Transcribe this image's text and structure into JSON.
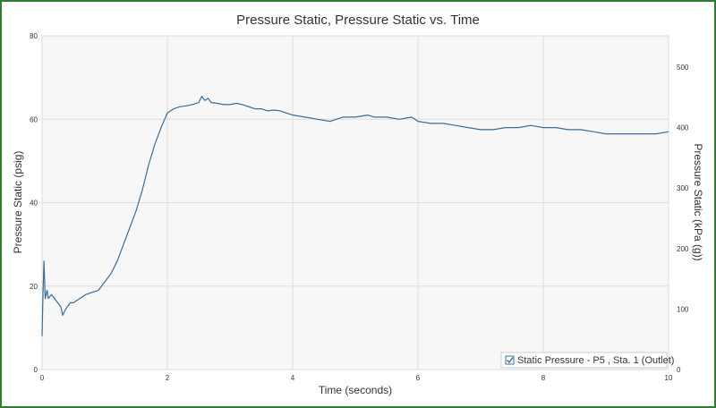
{
  "chart_data": {
    "type": "line",
    "title": "Pressure Static, Pressure Static vs. Time",
    "xlabel": "Time (seconds)",
    "ylabel": "Pressure Static (psig)",
    "y2label": "Pressure Static (kPa (g))",
    "xlim": [
      0,
      10
    ],
    "ylim": [
      0,
      80
    ],
    "y2lim": [
      0,
      551.6
    ],
    "xticks": [
      "0",
      "2",
      "4",
      "6",
      "8",
      "10"
    ],
    "yticks": [
      "0",
      "20",
      "40",
      "60",
      "80"
    ],
    "y2ticks": [
      "0",
      "100",
      "200",
      "300",
      "400",
      "500"
    ],
    "grid": true,
    "legend_position": "bottom-right",
    "colors": {
      "series": "#3a6d99",
      "plot_background": "#f7f7f7",
      "grid": "#dddddd",
      "frame": "#2e7d32"
    },
    "series": [
      {
        "name": "Static Pressure - P5 , Sta. 1 (Outlet)",
        "legend_checked": true,
        "x": [
          0,
          0.015,
          0.03,
          0.05,
          0.08,
          0.1,
          0.15,
          0.2,
          0.25,
          0.3,
          0.33,
          0.36,
          0.4,
          0.45,
          0.5,
          0.6,
          0.7,
          0.8,
          0.9,
          1.0,
          1.1,
          1.2,
          1.3,
          1.4,
          1.5,
          1.6,
          1.7,
          1.8,
          1.9,
          2.0,
          2.1,
          2.2,
          2.3,
          2.4,
          2.5,
          2.55,
          2.6,
          2.65,
          2.7,
          2.8,
          2.9,
          3.0,
          3.1,
          3.2,
          3.3,
          3.4,
          3.5,
          3.6,
          3.7,
          3.8,
          3.9,
          4.0,
          4.2,
          4.4,
          4.6,
          4.8,
          5.0,
          5.2,
          5.3,
          5.5,
          5.7,
          5.9,
          6.0,
          6.2,
          6.4,
          6.6,
          6.8,
          7.0,
          7.2,
          7.4,
          7.6,
          7.8,
          8.0,
          8.2,
          8.4,
          8.6,
          8.8,
          9.0,
          9.2,
          9.4,
          9.6,
          9.8,
          10.0
        ],
        "values": [
          8,
          18,
          26,
          17,
          19,
          17,
          18,
          17,
          16,
          15,
          13,
          14,
          15,
          16,
          16,
          17,
          18,
          18.5,
          19,
          21,
          23,
          26,
          30,
          34,
          38,
          43,
          49,
          54,
          58,
          61.5,
          62.5,
          63,
          63.2,
          63.5,
          64,
          65.5,
          64.5,
          65,
          64,
          63.8,
          63.5,
          63.5,
          63.8,
          63.5,
          63,
          62.5,
          62.5,
          62,
          62.2,
          62,
          61.5,
          61,
          60.5,
          60,
          59.5,
          60.5,
          60.5,
          61,
          60.5,
          60.5,
          60,
          60.5,
          59.5,
          59,
          59,
          58.5,
          58,
          57.5,
          57.5,
          58,
          58,
          58.5,
          58,
          58,
          57.5,
          57.5,
          57,
          56.5,
          56.5,
          56.5,
          56.5,
          56.5,
          57
        ]
      }
    ]
  }
}
